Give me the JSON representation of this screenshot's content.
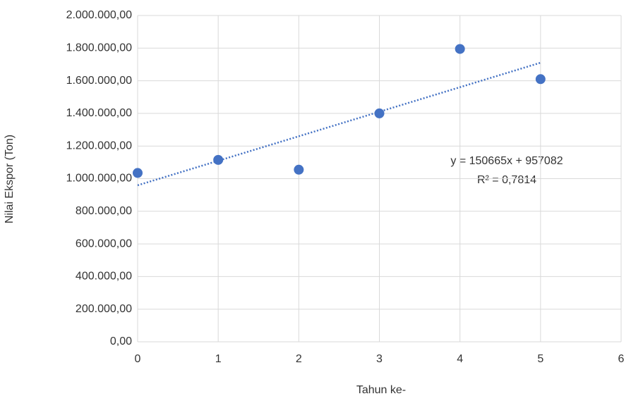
{
  "chart_data": {
    "type": "scatter",
    "x_label": "Tahun ke-",
    "y_label": "Nilai Ekspor (Ton)",
    "series": [
      {
        "color": "#4472c4",
        "x": [
          0,
          1,
          2,
          3,
          4,
          5
        ],
        "values": [
          1035000,
          1115000,
          1055000,
          1400000,
          1795000,
          1610000
        ]
      }
    ],
    "trendline": {
      "type": "linear",
      "color": "#4472c4",
      "equation": "y = 150665x + 957082",
      "r_squared": "R² = 0,7814"
    },
    "xlim": [
      0,
      6
    ],
    "xticks": [
      0,
      1,
      2,
      3,
      4,
      5,
      6
    ],
    "ylim": [
      0,
      2000000
    ],
    "yticks": [
      {
        "value": 0,
        "label": "0,00"
      },
      {
        "value": 200000,
        "label": "200.000,00"
      },
      {
        "value": 400000,
        "label": "400.000,00"
      },
      {
        "value": 600000,
        "label": "600.000,00"
      },
      {
        "value": 800000,
        "label": "800.000,00"
      },
      {
        "value": 1000000,
        "label": "1.000.000,00"
      },
      {
        "value": 1200000,
        "label": "1.200.000,00"
      },
      {
        "value": 1400000,
        "label": "1.400.000,00"
      },
      {
        "value": 1600000,
        "label": "1.600.000,00"
      },
      {
        "value": 1800000,
        "label": "1.800.000,00"
      },
      {
        "value": 2000000,
        "label": "2.000.000,00"
      }
    ],
    "grid": true
  }
}
